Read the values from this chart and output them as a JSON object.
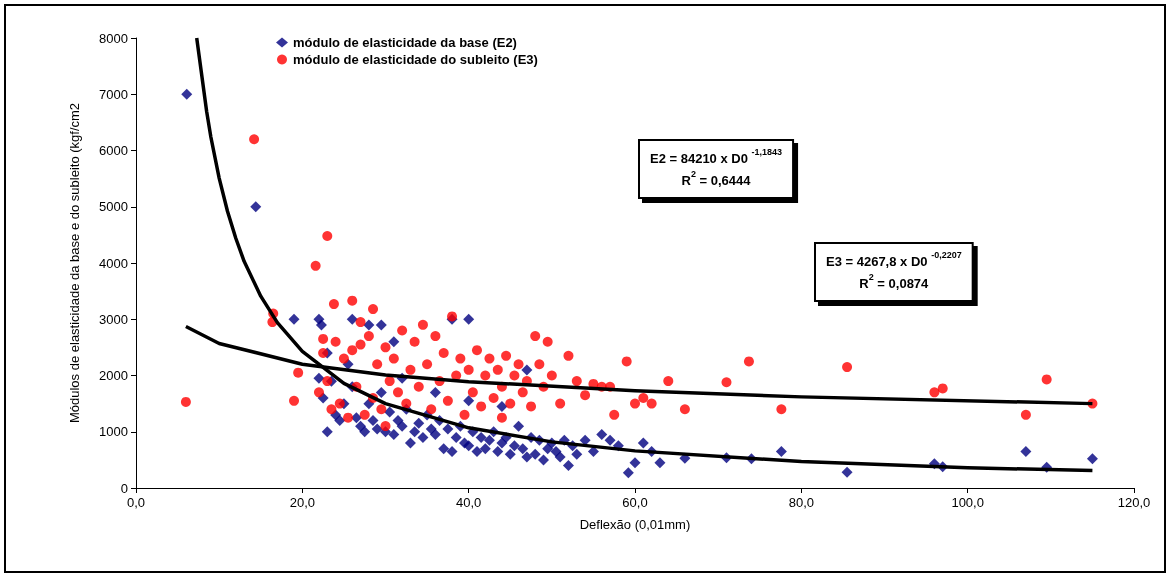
{
  "chart_data": {
    "type": "scatter",
    "xlabel": "Deflexão (0,01mm)",
    "ylabel": "Módulos de elasticidade da base e do subleito (kgf/cm2",
    "xlim": [
      0,
      120
    ],
    "xticks": [
      {
        "value": 0,
        "label": "0,0"
      },
      {
        "value": 20,
        "label": "20,0"
      },
      {
        "value": 40,
        "label": "40,0"
      },
      {
        "value": 60,
        "label": "60,0"
      },
      {
        "value": 80,
        "label": "80,0"
      },
      {
        "value": 100,
        "label": "100,0"
      },
      {
        "value": 120,
        "label": "120,0"
      }
    ],
    "ylim": [
      0,
      8000
    ],
    "yticks": [
      0,
      1000,
      2000,
      3000,
      4000,
      5000,
      6000,
      7000,
      8000
    ],
    "grid": false,
    "legend": "top left",
    "annotations": [
      "E2 = 84210 x D0 $^{-1,1843}$\nR$^{2}$ = 0,6444",
      "E3 = 4267,8 x D0 $^{-0,2207}$\nR$^{2}$ = 0,0874"
    ],
    "series": [
      {
        "name": "módulo de elasticidade da base (E2)",
        "type": "scatter",
        "marker": "diamond",
        "color": "#000080",
        "x": [
          6.1,
          14.4,
          19,
          22,
          22.3,
          23,
          26,
          28,
          29.5,
          31,
          38,
          40,
          59.2,
          60,
          61,
          62,
          63,
          66,
          71,
          74,
          77.6,
          85.5,
          96,
          97,
          107,
          109.5,
          115,
          22,
          22.5,
          23,
          23.5,
          24,
          24.5,
          25,
          25.5,
          26,
          26.5,
          27,
          27.5,
          28,
          28.5,
          29,
          29.5,
          30,
          30.5,
          31,
          31.5,
          32,
          32.5,
          33,
          33.5,
          34,
          34.5,
          35,
          35.5,
          36,
          36.5,
          37,
          37.5,
          38,
          38.5,
          39,
          39.5,
          40,
          40.5,
          41,
          41.5,
          42,
          42.5,
          43,
          43.5,
          44,
          44.5,
          45,
          45.5,
          46,
          46.5,
          47,
          47.5,
          48,
          48.5,
          49,
          49.5,
          50,
          50.5,
          51,
          51.5,
          52,
          52.5,
          53,
          54,
          55,
          56,
          57,
          58,
          36,
          40,
          44,
          47,
          32
        ],
        "values": [
          7000,
          5000,
          3000,
          3000,
          2900,
          2400,
          3000,
          2900,
          2900,
          2600,
          3000,
          3000,
          270,
          450,
          800,
          650,
          450,
          530,
          540,
          520,
          650,
          280,
          430,
          380,
          650,
          370,
          520,
          1950,
          1600,
          1000,
          1900,
          1300,
          1200,
          1500,
          2200,
          1800,
          1250,
          1100,
          1000,
          1500,
          1200,
          1050,
          1700,
          1000,
          1350,
          950,
          1200,
          1100,
          1400,
          800,
          1000,
          1150,
          900,
          1300,
          1050,
          950,
          1200,
          700,
          1050,
          650,
          900,
          1100,
          800,
          750,
          1000,
          650,
          900,
          700,
          850,
          1000,
          650,
          800,
          900,
          600,
          750,
          1100,
          700,
          550,
          900,
          600,
          850,
          500,
          700,
          800,
          650,
          550,
          850,
          400,
          750,
          600,
          850,
          650,
          950,
          850,
          750,
          1700,
          1550,
          1450,
          2100,
          1950
        ]
      },
      {
        "name": "módulo de elasticidade do subleito (E3)",
        "type": "scatter",
        "marker": "circle",
        "color": "#ff0000",
        "x": [
          6,
          14.2,
          16.5,
          16.4,
          19,
          19.5,
          21.6,
          22.5,
          23,
          23.8,
          26,
          27,
          28.5,
          57,
          59,
          60,
          61,
          62,
          64,
          66,
          71,
          73.7,
          77.6,
          85.5,
          96,
          97,
          107,
          109.5,
          115,
          22,
          22.5,
          23,
          23.5,
          24,
          24.5,
          25,
          25.5,
          26,
          26.5,
          27,
          27.5,
          28,
          28.5,
          29,
          29.5,
          30,
          30.5,
          31,
          31.5,
          32,
          32.5,
          33,
          33.5,
          34,
          34.5,
          35,
          35.5,
          36,
          36.5,
          37,
          37.5,
          38,
          38.5,
          39,
          39.5,
          40,
          40.5,
          41,
          41.5,
          42,
          42.5,
          43,
          43.5,
          44,
          44.5,
          45,
          45.5,
          46,
          46.5,
          47,
          47.5,
          48,
          48.5,
          49,
          49.5,
          50,
          51,
          52,
          53,
          54,
          55,
          56,
          57.5,
          30,
          44
        ],
        "values": [
          1530,
          6200,
          3100,
          2950,
          1550,
          2050,
          3950,
          2650,
          4480,
          3270,
          3330,
          2950,
          3180,
          1800,
          2250,
          1500,
          1600,
          1500,
          1900,
          1400,
          1880,
          2250,
          1400,
          2150,
          1700,
          1770,
          1300,
          1930,
          1500,
          1700,
          2400,
          1900,
          1400,
          2600,
          1500,
          2300,
          1250,
          2450,
          1800,
          2550,
          1300,
          2700,
          1600,
          2200,
          1400,
          2500,
          1900,
          2300,
          1700,
          2800,
          1500,
          2100,
          2600,
          1800,
          2900,
          2200,
          1400,
          2700,
          1900,
          2400,
          1550,
          3050,
          2000,
          2300,
          1300,
          2100,
          1700,
          2450,
          1450,
          2000,
          2300,
          1600,
          2100,
          1800,
          2350,
          1500,
          2000,
          2200,
          1700,
          1900,
          1450,
          2700,
          2200,
          1800,
          2600,
          2000,
          1500,
          2350,
          1900,
          1650,
          1850,
          1800,
          1300,
          1100,
          1250
        ]
      },
      {
        "type": "line",
        "marker": "none",
        "color": "#000000",
        "x": [
          7.3,
          8.5,
          9,
          10,
          11,
          12,
          13,
          15,
          17,
          20,
          25,
          30,
          40,
          50,
          60,
          80,
          100,
          115
        ],
        "values": [
          8000,
          6690,
          6240,
          5510,
          4920,
          4440,
          4030,
          3410,
          2940,
          2430,
          1860,
          1500,
          1070,
          820,
          660,
          470,
          360,
          310
        ]
      },
      {
        "type": "line",
        "marker": "none",
        "color": "#000000",
        "x": [
          6,
          10,
          20,
          30,
          40,
          60,
          80,
          115
        ],
        "values": [
          2870,
          2570,
          2200,
          2010,
          1890,
          1730,
          1620,
          1500
        ]
      }
    ]
  }
}
